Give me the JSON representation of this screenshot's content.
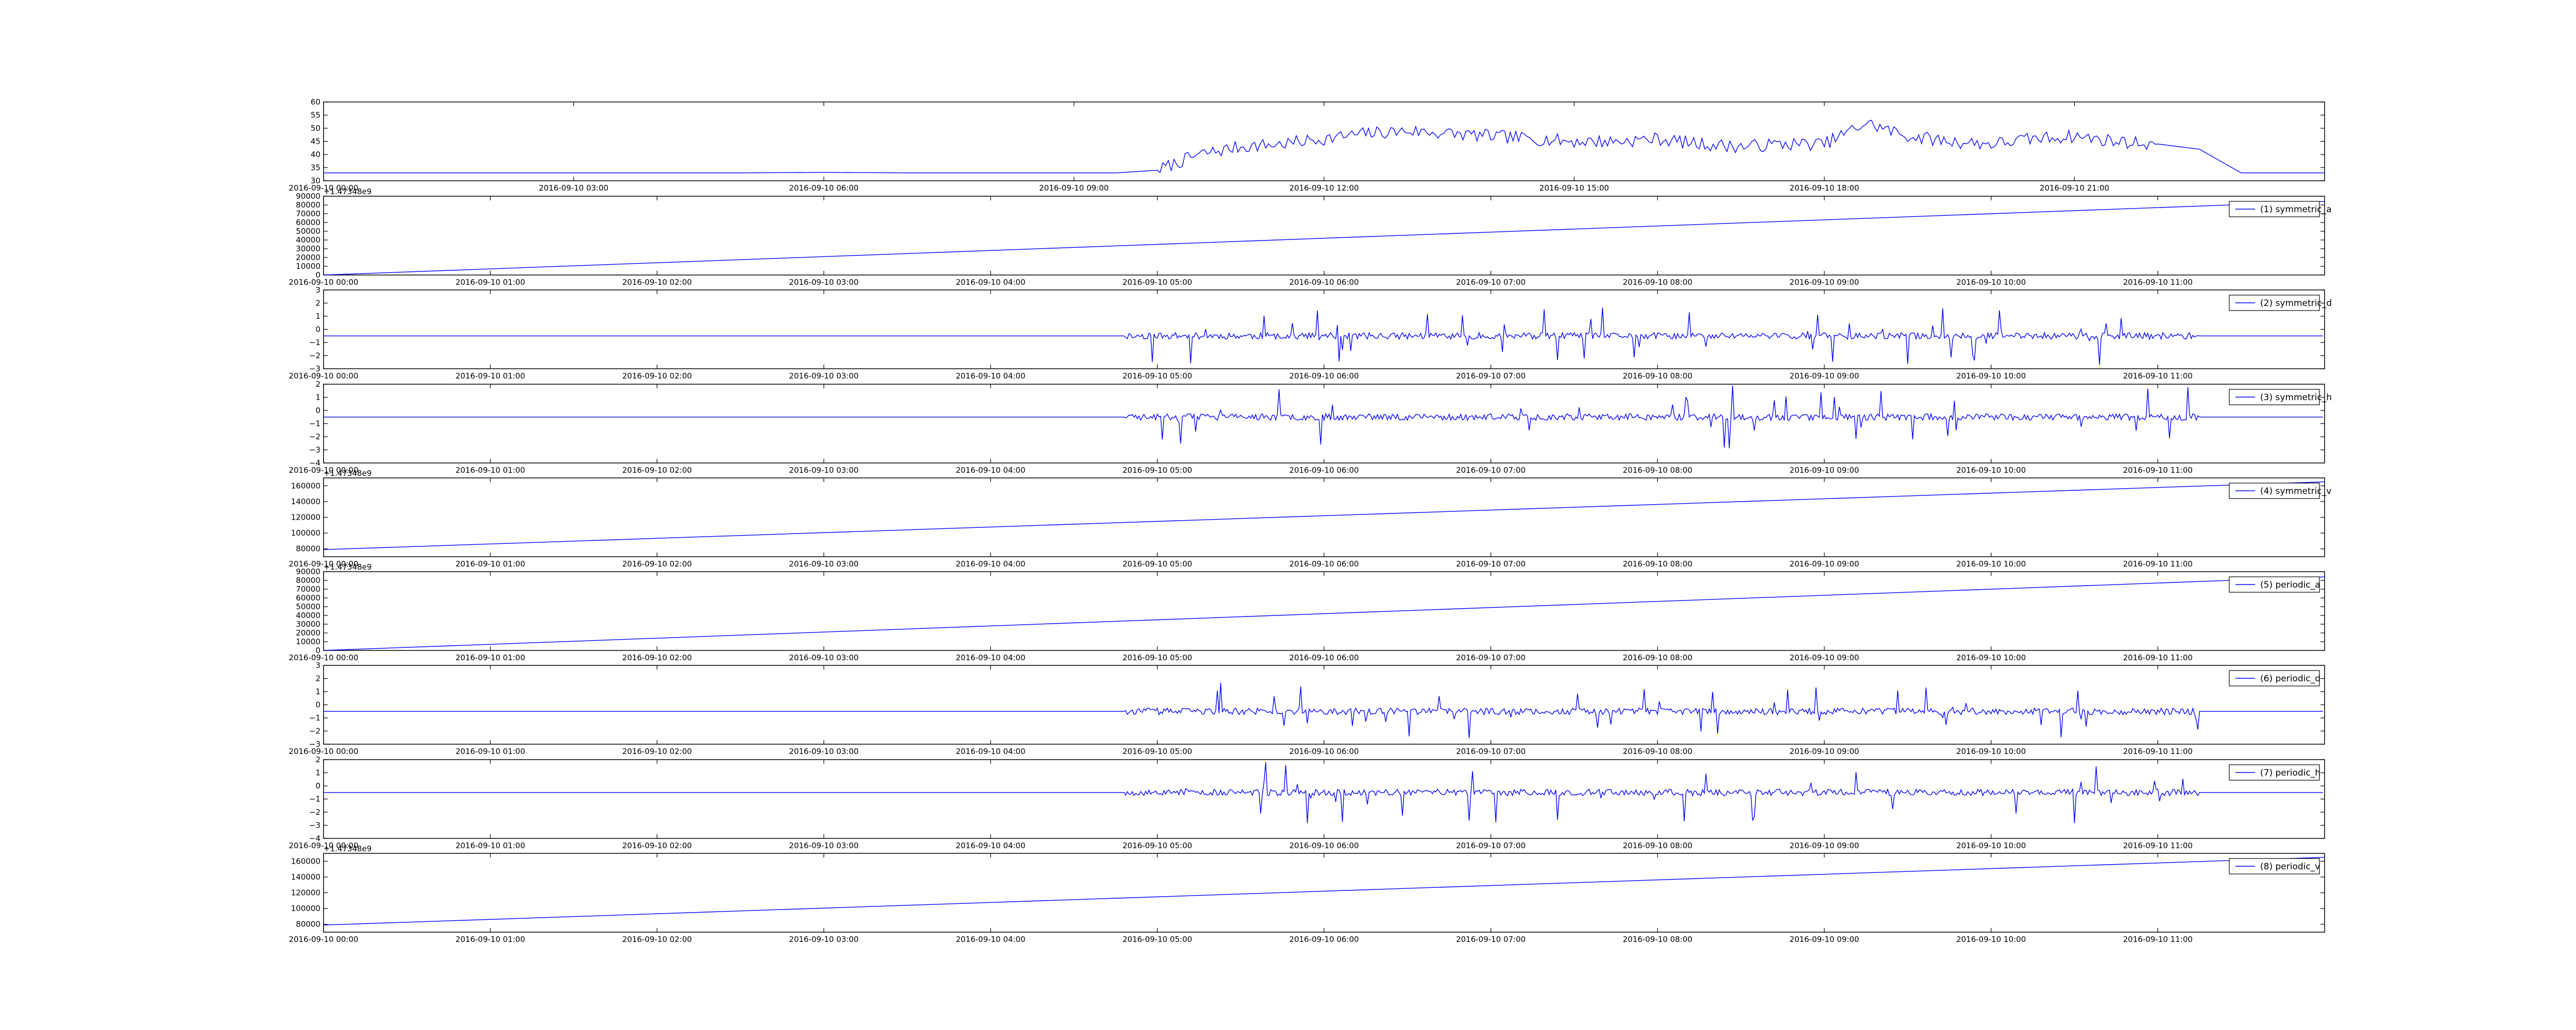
{
  "figure": {
    "background": "#ffffff",
    "line_color": "#0000ff"
  },
  "chart_data": [
    {
      "type": "line",
      "legend": "",
      "offset_text": "",
      "ylim": [
        30,
        60
      ],
      "y_ticks": [
        30,
        35,
        40,
        45,
        50,
        55,
        60
      ],
      "y_tick_labels": [
        "30",
        "35",
        "40",
        "45",
        "50",
        "55",
        "60"
      ],
      "x_tick_labels": [
        "2016-09-10 00:00",
        "2016-09-10 03:00",
        "2016-09-10 06:00",
        "2016-09-10 09:00",
        "2016-09-10 12:00",
        "2016-09-10 15:00",
        "2016-09-10 18:00",
        "2016-09-10 21:00"
      ],
      "x": [
        "00:00",
        "01:00",
        "02:00",
        "03:00",
        "04:00",
        "05:00",
        "06:00",
        "07:00",
        "08:00",
        "09:00",
        "09:30",
        "10:00",
        "10:30",
        "11:00",
        "11:30",
        "12:00",
        "12:30",
        "13:00",
        "13:30",
        "14:00",
        "14:30",
        "15:00",
        "15:30",
        "16:00",
        "16:30",
        "17:00",
        "17:30",
        "18:00",
        "18:30",
        "19:00",
        "19:30",
        "20:00",
        "20:30",
        "21:00",
        "21:30",
        "22:00",
        "22:30",
        "23:00",
        "24:00"
      ],
      "values": [
        33,
        33,
        33,
        33,
        33,
        33,
        33.2,
        33,
        33,
        33,
        33,
        34,
        40,
        43,
        44,
        46,
        48,
        49,
        48,
        47,
        46,
        45,
        45,
        46,
        44,
        43,
        44,
        44,
        52,
        47,
        45,
        44,
        46,
        47,
        45,
        44,
        42,
        33,
        33
      ]
    },
    {
      "type": "line",
      "legend": "(1) symmetric_a",
      "offset_text": "+1.47348e9",
      "ylim": [
        0,
        90000
      ],
      "y_ticks": [
        0,
        10000,
        20000,
        30000,
        40000,
        50000,
        60000,
        70000,
        80000,
        90000
      ],
      "y_tick_labels": [
        "0",
        "10000",
        "20000",
        "30000",
        "40000",
        "50000",
        "60000",
        "70000",
        "80000",
        "90000"
      ],
      "x_tick_labels": [
        "2016-09-10 00:00",
        "2016-09-10 01:00",
        "2016-09-10 02:00",
        "2016-09-10 03:00",
        "2016-09-10 04:00",
        "2016-09-10 05:00",
        "2016-09-10 06:00",
        "2016-09-10 07:00",
        "2016-09-10 08:00",
        "2016-09-10 09:00",
        "2016-09-10 10:00",
        "2016-09-10 11:00"
      ],
      "x": [
        "00:00",
        "12:00"
      ],
      "values": [
        0,
        84000
      ]
    },
    {
      "type": "line",
      "legend": "(2) symmetric_d",
      "offset_text": "",
      "ylim": [
        -3,
        3
      ],
      "y_ticks": [
        -3,
        -2,
        -1,
        0,
        1,
        2,
        3
      ],
      "y_tick_labels": [
        "−3",
        "−2",
        "−1",
        "0",
        "1",
        "2",
        "3"
      ],
      "x_tick_labels": [
        "2016-09-10 00:00",
        "2016-09-10 01:00",
        "2016-09-10 02:00",
        "2016-09-10 03:00",
        "2016-09-10 04:00",
        "2016-09-10 05:00",
        "2016-09-10 06:00",
        "2016-09-10 07:00",
        "2016-09-10 08:00",
        "2016-09-10 09:00",
        "2016-09-10 10:00",
        "2016-09-10 11:00"
      ],
      "baseline": -0.5,
      "noise_window": [
        "04:48",
        "11:15"
      ],
      "noise_amplitude": 2.2,
      "seed": 11
    },
    {
      "type": "line",
      "legend": "(3) symmetric_h",
      "offset_text": "",
      "ylim": [
        -4,
        2
      ],
      "y_ticks": [
        -4,
        -3,
        -2,
        -1,
        0,
        1,
        2
      ],
      "y_tick_labels": [
        "−4",
        "−3",
        "−2",
        "−1",
        "0",
        "1",
        "2"
      ],
      "x_tick_labels": [
        "2016-09-10 00:00",
        "2016-09-10 01:00",
        "2016-09-10 02:00",
        "2016-09-10 03:00",
        "2016-09-10 04:00",
        "2016-09-10 05:00",
        "2016-09-10 06:00",
        "2016-09-10 07:00",
        "2016-09-10 08:00",
        "2016-09-10 09:00",
        "2016-09-10 10:00",
        "2016-09-10 11:00"
      ],
      "baseline": -0.5,
      "noise_window": [
        "04:48",
        "11:15"
      ],
      "noise_amplitude": 2.4,
      "seed": 23
    },
    {
      "type": "line",
      "legend": "(4) symmetric_v",
      "offset_text": "+1.47348e9",
      "ylim": [
        70000,
        170000
      ],
      "y_ticks": [
        80000,
        100000,
        120000,
        140000,
        160000
      ],
      "y_tick_labels": [
        "80000",
        "100000",
        "120000",
        "140000",
        "160000"
      ],
      "x_tick_labels": [
        "2016-09-10 00:00",
        "2016-09-10 01:00",
        "2016-09-10 02:00",
        "2016-09-10 03:00",
        "2016-09-10 04:00",
        "2016-09-10 05:00",
        "2016-09-10 06:00",
        "2016-09-10 07:00",
        "2016-09-10 08:00",
        "2016-09-10 09:00",
        "2016-09-10 10:00",
        "2016-09-10 11:00"
      ],
      "x": [
        "00:00",
        "12:00"
      ],
      "values": [
        79000,
        165000
      ]
    },
    {
      "type": "line",
      "legend": "(5) periodic_a",
      "offset_text": "+1.47348e9",
      "ylim": [
        0,
        90000
      ],
      "y_ticks": [
        0,
        10000,
        20000,
        30000,
        40000,
        50000,
        60000,
        70000,
        80000,
        90000
      ],
      "y_tick_labels": [
        "0",
        "10000",
        "20000",
        "30000",
        "40000",
        "50000",
        "60000",
        "70000",
        "80000",
        "90000"
      ],
      "x_tick_labels": [
        "2016-09-10 00:00",
        "2016-09-10 01:00",
        "2016-09-10 02:00",
        "2016-09-10 03:00",
        "2016-09-10 04:00",
        "2016-09-10 05:00",
        "2016-09-10 06:00",
        "2016-09-10 07:00",
        "2016-09-10 08:00",
        "2016-09-10 09:00",
        "2016-09-10 10:00",
        "2016-09-10 11:00"
      ],
      "x": [
        "00:00",
        "12:00"
      ],
      "values": [
        0,
        84000
      ]
    },
    {
      "type": "line",
      "legend": "(6) periodic_d",
      "offset_text": "",
      "ylim": [
        -3,
        3
      ],
      "y_ticks": [
        -3,
        -2,
        -1,
        0,
        1,
        2,
        3
      ],
      "y_tick_labels": [
        "−3",
        "−2",
        "−1",
        "0",
        "1",
        "2",
        "3"
      ],
      "x_tick_labels": [
        "2016-09-10 00:00",
        "2016-09-10 01:00",
        "2016-09-10 02:00",
        "2016-09-10 03:00",
        "2016-09-10 04:00",
        "2016-09-10 05:00",
        "2016-09-10 06:00",
        "2016-09-10 07:00",
        "2016-09-10 08:00",
        "2016-09-10 09:00",
        "2016-09-10 10:00",
        "2016-09-10 11:00"
      ],
      "baseline": -0.5,
      "noise_window": [
        "04:48",
        "11:15"
      ],
      "noise_amplitude": 2.2,
      "seed": 37
    },
    {
      "type": "line",
      "legend": "(7) periodic_h",
      "offset_text": "",
      "ylim": [
        -4,
        2
      ],
      "y_ticks": [
        -4,
        -3,
        -2,
        -1,
        0,
        1,
        2
      ],
      "y_tick_labels": [
        "−4",
        "−3",
        "−2",
        "−1",
        "0",
        "1",
        "2"
      ],
      "x_tick_labels": [
        "2016-09-10 00:00",
        "2016-09-10 01:00",
        "2016-09-10 02:00",
        "2016-09-10 03:00",
        "2016-09-10 04:00",
        "2016-09-10 05:00",
        "2016-09-10 06:00",
        "2016-09-10 07:00",
        "2016-09-10 08:00",
        "2016-09-10 09:00",
        "2016-09-10 10:00",
        "2016-09-10 11:00"
      ],
      "baseline": -0.5,
      "noise_window": [
        "04:48",
        "11:15"
      ],
      "noise_amplitude": 2.4,
      "seed": 53
    },
    {
      "type": "line",
      "legend": "(8) periodic_v",
      "offset_text": "+1.47348e9",
      "ylim": [
        70000,
        170000
      ],
      "y_ticks": [
        80000,
        100000,
        120000,
        140000,
        160000
      ],
      "y_tick_labels": [
        "80000",
        "100000",
        "120000",
        "140000",
        "160000"
      ],
      "x_tick_labels": [
        "2016-09-10 00:00",
        "2016-09-10 01:00",
        "2016-09-10 02:00",
        "2016-09-10 03:00",
        "2016-09-10 04:00",
        "2016-09-10 05:00",
        "2016-09-10 06:00",
        "2016-09-10 07:00",
        "2016-09-10 08:00",
        "2016-09-10 09:00",
        "2016-09-10 10:00",
        "2016-09-10 11:00"
      ],
      "x": [
        "00:00",
        "12:00"
      ],
      "values": [
        79000,
        165000
      ]
    }
  ]
}
